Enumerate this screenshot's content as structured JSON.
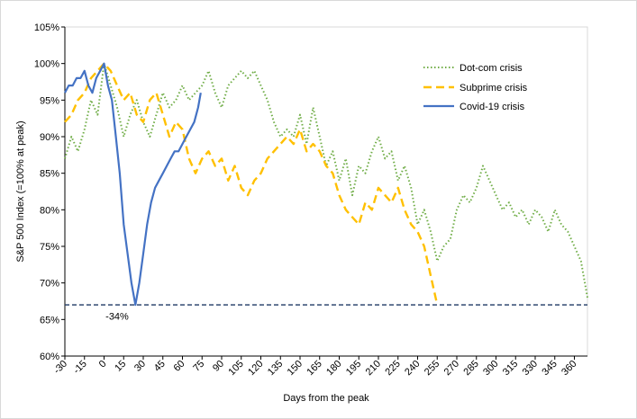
{
  "chart_data": {
    "type": "line",
    "title": "",
    "xlabel": "Days from the peak",
    "ylabel": "S&P 500 Index (=100% at peak)",
    "xlim": [
      -30,
      370
    ],
    "ylim": [
      60,
      105
    ],
    "x_ticks": [
      -30,
      -15,
      0,
      15,
      30,
      45,
      60,
      75,
      90,
      105,
      120,
      135,
      150,
      165,
      180,
      195,
      210,
      225,
      240,
      255,
      270,
      285,
      300,
      315,
      330,
      345,
      360
    ],
    "x_tick_labels": [
      "-30",
      "-15",
      "0",
      "15",
      "30",
      "45",
      "60",
      "75",
      "90",
      "105",
      "120",
      "135",
      "150",
      "165",
      "180",
      "195",
      "210",
      "225",
      "240",
      "255",
      "270",
      "285",
      "300",
      "315",
      "330",
      "345",
      "360"
    ],
    "y_ticks": [
      60,
      65,
      70,
      75,
      80,
      85,
      90,
      95,
      100,
      105
    ],
    "y_tick_labels": [
      "60%",
      "65%",
      "70%",
      "75%",
      "80%",
      "85%",
      "90%",
      "95%",
      "100%",
      "105%"
    ],
    "legend_position": "top-right",
    "grid": false,
    "series": [
      {
        "name": "Dot-com crisis",
        "color": "#70AD47",
        "style": "dotted",
        "x": [
          -30,
          -25,
          -20,
          -15,
          -10,
          -5,
          0,
          5,
          10,
          15,
          20,
          25,
          30,
          35,
          40,
          45,
          50,
          55,
          60,
          65,
          70,
          75,
          80,
          85,
          90,
          95,
          100,
          105,
          110,
          115,
          120,
          125,
          130,
          135,
          140,
          145,
          150,
          155,
          160,
          165,
          170,
          175,
          180,
          185,
          190,
          195,
          200,
          205,
          210,
          215,
          220,
          225,
          230,
          235,
          240,
          245,
          250,
          255,
          260,
          265,
          270,
          275,
          280,
          285,
          290,
          295,
          300,
          305,
          310,
          315,
          320,
          325,
          330,
          335,
          340,
          345,
          350,
          355,
          360,
          365,
          370
        ],
        "values": [
          87,
          90,
          88,
          91,
          95,
          93,
          100,
          97,
          94,
          90,
          93,
          95,
          92,
          90,
          93,
          96,
          94,
          95,
          97,
          95,
          96,
          97,
          99,
          96,
          94,
          97,
          98,
          99,
          98,
          99,
          97,
          95,
          92,
          90,
          91,
          90,
          93,
          89,
          94,
          90,
          86,
          88,
          84,
          87,
          82,
          86,
          85,
          88,
          90,
          87,
          88,
          84,
          86,
          83,
          78,
          80,
          77,
          73,
          75,
          76,
          80,
          82,
          81,
          83,
          86,
          84,
          82,
          80,
          81,
          79,
          80,
          78,
          80,
          79,
          77,
          80,
          78,
          77,
          75,
          73,
          68
        ]
      },
      {
        "name": "Subprime crisis",
        "color": "#FFC000",
        "style": "dashed",
        "x": [
          -30,
          -25,
          -20,
          -15,
          -10,
          -5,
          0,
          5,
          10,
          15,
          20,
          25,
          30,
          35,
          40,
          45,
          50,
          55,
          60,
          65,
          70,
          75,
          80,
          85,
          90,
          95,
          100,
          105,
          110,
          115,
          120,
          125,
          130,
          135,
          140,
          145,
          150,
          155,
          160,
          165,
          170,
          175,
          180,
          185,
          190,
          195,
          200,
          205,
          210,
          215,
          220,
          225,
          230,
          235,
          240,
          245,
          250,
          255
        ],
        "values": [
          92,
          93,
          95,
          96,
          98,
          99,
          100,
          99,
          97,
          95,
          96,
          93,
          92,
          95,
          96,
          93,
          90,
          92,
          91,
          87,
          85,
          87,
          88,
          86,
          87,
          84,
          86,
          83,
          82,
          84,
          85,
          87,
          88,
          89,
          90,
          89,
          91,
          88,
          89,
          88,
          86,
          85,
          82,
          80,
          79,
          78,
          81,
          80,
          83,
          82,
          81,
          83,
          80,
          78,
          77,
          75,
          71,
          67
        ]
      },
      {
        "name": "Covid-19 crisis",
        "color": "#4472C4",
        "style": "solid",
        "x": [
          -30,
          -27,
          -24,
          -21,
          -18,
          -15,
          -12,
          -9,
          -6,
          -3,
          0,
          3,
          6,
          9,
          12,
          15,
          18,
          21,
          24,
          27,
          30,
          33,
          36,
          39,
          42,
          45,
          48,
          51,
          54,
          57,
          60,
          63,
          66,
          69,
          72,
          74
        ],
        "values": [
          96,
          97,
          97,
          98,
          98,
          99,
          97,
          96,
          98,
          99,
          100,
          97,
          95,
          90,
          85,
          78,
          74,
          70,
          67,
          70,
          74,
          78,
          81,
          83,
          84,
          85,
          86,
          87,
          88,
          88,
          89,
          90,
          91,
          92,
          94,
          96
        ]
      }
    ],
    "reference_line": {
      "value": 67,
      "color": "#1F3864",
      "style": "dashed"
    },
    "annotations": [
      {
        "text": "-34%",
        "x": 10,
        "y": 65.5
      }
    ]
  }
}
